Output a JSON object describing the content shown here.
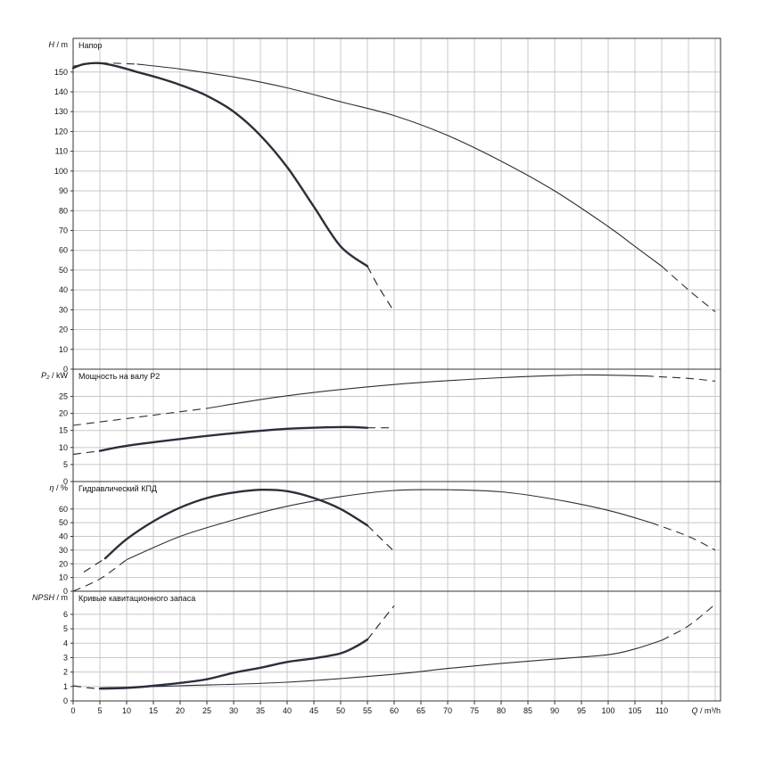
{
  "chart_data": {
    "type": "line",
    "grid": true,
    "xlabel": "Q / m³/h",
    "xlim": [
      0,
      121
    ],
    "xticks": [
      0,
      5,
      10,
      15,
      20,
      25,
      30,
      35,
      40,
      45,
      50,
      55,
      60,
      65,
      70,
      75,
      80,
      85,
      90,
      95,
      100,
      105,
      110
    ],
    "panels": [
      {
        "id": "head",
        "title": "Напор",
        "ylabel_sym": "H",
        "ylabel_unit": " / m",
        "ylim": [
          0,
          167
        ],
        "yticks": [
          0,
          10,
          20,
          30,
          40,
          50,
          60,
          70,
          80,
          90,
          100,
          110,
          120,
          130,
          140,
          150
        ],
        "series": [
          {
            "style": "thick",
            "solid": [
              [
                0,
                152
              ],
              [
                2,
                154
              ],
              [
                5,
                154.5
              ],
              [
                8,
                153
              ],
              [
                12,
                150
              ],
              [
                16,
                147
              ],
              [
                20,
                143.5
              ],
              [
                25,
                138
              ],
              [
                30,
                130
              ],
              [
                35,
                118
              ],
              [
                40,
                102
              ],
              [
                45,
                82
              ],
              [
                50,
                62
              ],
              [
                55,
                52
              ]
            ],
            "dashed": [
              [
                55,
                52
              ],
              [
                57,
                42
              ],
              [
                60,
                29
              ]
            ]
          },
          {
            "style": "thin",
            "solid": [
              [
                12,
                154
              ],
              [
                20,
                151.5
              ],
              [
                30,
                147.5
              ],
              [
                40,
                142
              ],
              [
                50,
                135
              ],
              [
                60,
                128
              ],
              [
                70,
                118
              ],
              [
                80,
                105
              ],
              [
                90,
                90
              ],
              [
                100,
                72
              ],
              [
                105,
                62
              ],
              [
                110,
                52
              ]
            ],
            "dashed": [
              [
                0,
                153
              ],
              [
                5,
                154.5
              ],
              [
                12,
                154
              ]
            ],
            "dashed2": [
              [
                110,
                52
              ],
              [
                115,
                40
              ],
              [
                120,
                29
              ]
            ]
          }
        ]
      },
      {
        "id": "power",
        "title": "Мощность на валу P2",
        "ylabel_sym": "P₂",
        "ylabel_unit": " / kW",
        "ylim": [
          0,
          33
        ],
        "yticks": [
          0,
          5,
          10,
          15,
          20,
          25
        ],
        "series": [
          {
            "style": "thick",
            "solid": [
              [
                5,
                9
              ],
              [
                10,
                10.5
              ],
              [
                20,
                12.5
              ],
              [
                30,
                14.2
              ],
              [
                40,
                15.5
              ],
              [
                50,
                16
              ],
              [
                55,
                15.8
              ]
            ],
            "dashed": [
              [
                0,
                8
              ],
              [
                5,
                9
              ]
            ],
            "dashed2": [
              [
                55,
                15.8
              ],
              [
                59,
                15.8
              ]
            ]
          },
          {
            "style": "thin",
            "solid": [
              [
                25,
                21.5
              ],
              [
                40,
                25.2
              ],
              [
                60,
                28.5
              ],
              [
                80,
                30.5
              ],
              [
                95,
                31.3
              ],
              [
                107,
                31
              ]
            ],
            "dashed": [
              [
                0,
                16.5
              ],
              [
                10,
                18.5
              ],
              [
                25,
                21.5
              ]
            ],
            "dashed2": [
              [
                107,
                31
              ],
              [
                115,
                30.3
              ],
              [
                120,
                29.5
              ]
            ]
          }
        ]
      },
      {
        "id": "efficiency",
        "title": "Гидравлический КПД",
        "ylabel_sym": "η",
        "ylabel_unit": " / %",
        "ylim": [
          0,
          80
        ],
        "yticks": [
          0,
          10,
          20,
          30,
          40,
          50,
          60
        ],
        "series": [
          {
            "style": "thick",
            "solid": [
              [
                6,
                24
              ],
              [
                10,
                38
              ],
              [
                15,
                51
              ],
              [
                20,
                61
              ],
              [
                25,
                68
              ],
              [
                30,
                72
              ],
              [
                35,
                74
              ],
              [
                40,
                73
              ],
              [
                45,
                68
              ],
              [
                50,
                60
              ],
              [
                55,
                48
              ]
            ],
            "dashed": [
              [
                2,
                14
              ],
              [
                6,
                24
              ]
            ],
            "dashed2": [
              [
                55,
                48
              ],
              [
                60,
                29
              ]
            ]
          },
          {
            "style": "thin",
            "solid": [
              [
                10,
                23
              ],
              [
                20,
                40
              ],
              [
                30,
                52
              ],
              [
                40,
                62
              ],
              [
                50,
                69
              ],
              [
                60,
                73.5
              ],
              [
                70,
                74
              ],
              [
                80,
                72.5
              ],
              [
                90,
                67
              ],
              [
                100,
                59
              ],
              [
                108,
                50
              ]
            ],
            "dashed": [
              [
                0,
                0
              ],
              [
                5,
                9
              ],
              [
                10,
                23
              ]
            ],
            "dashed2": [
              [
                108,
                50
              ],
              [
                115,
                40
              ],
              [
                120,
                30
              ]
            ]
          }
        ]
      },
      {
        "id": "npsh",
        "title": "Кривые кавитационного запаса",
        "ylabel_sym": "NPSH",
        "ylabel_unit": " / m",
        "ylim": [
          0,
          7.6
        ],
        "yticks": [
          0,
          1,
          2,
          3,
          4,
          5,
          6
        ],
        "series": [
          {
            "style": "thick",
            "solid": [
              [
                5,
                0.85
              ],
              [
                10,
                0.9
              ],
              [
                15,
                1.05
              ],
              [
                20,
                1.25
              ],
              [
                25,
                1.5
              ],
              [
                30,
                1.95
              ],
              [
                35,
                2.3
              ],
              [
                40,
                2.7
              ],
              [
                45,
                2.95
              ],
              [
                50,
                3.3
              ],
              [
                53,
                3.8
              ],
              [
                55,
                4.25
              ]
            ],
            "dashed": [
              [
                0,
                1.05
              ],
              [
                3,
                0.9
              ],
              [
                5,
                0.85
              ]
            ],
            "dashed2": [
              [
                55,
                4.25
              ],
              [
                57,
                5.2
              ],
              [
                60,
                6.6
              ]
            ]
          },
          {
            "style": "thin",
            "solid": [
              [
                5,
                0.9
              ],
              [
                20,
                1.05
              ],
              [
                40,
                1.3
              ],
              [
                60,
                1.85
              ],
              [
                70,
                2.25
              ],
              [
                80,
                2.6
              ],
              [
                90,
                2.9
              ],
              [
                100,
                3.2
              ],
              [
                105,
                3.6
              ],
              [
                110,
                4.2
              ]
            ],
            "dashed": [
              [
                110,
                4.2
              ],
              [
                115,
                5.2
              ],
              [
                120,
                6.7
              ]
            ]
          }
        ]
      }
    ]
  }
}
